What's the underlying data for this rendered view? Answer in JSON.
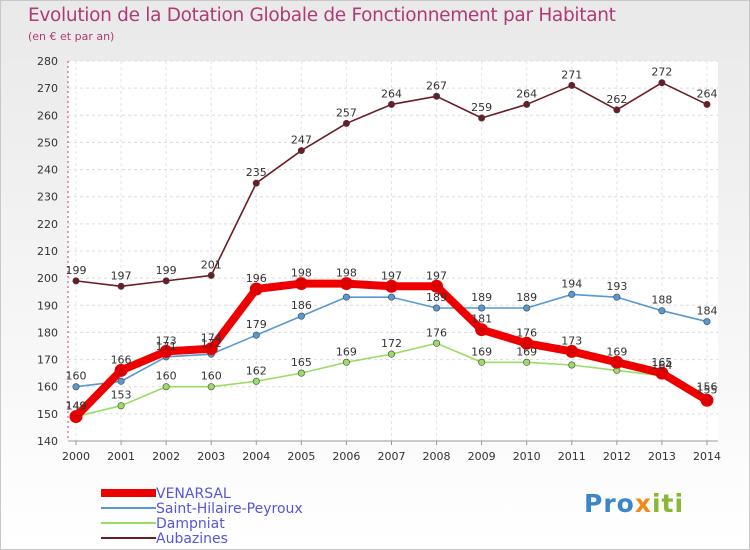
{
  "header": {
    "title": "Evolution de la Dotation Globale de Fonctionnement par Habitant",
    "subtitle": "(en € et par an)"
  },
  "logo": {
    "part1": "Pro",
    "part2": "x",
    "part3": "iti"
  },
  "chart_data": {
    "type": "line",
    "title": "Evolution de la Dotation Globale de Fonctionnement par Habitant",
    "subtitle": "(en € et par an)",
    "xlabel": "",
    "ylabel": "",
    "ylim": [
      140,
      280
    ],
    "yticks": [
      140,
      150,
      160,
      170,
      180,
      190,
      200,
      210,
      220,
      230,
      240,
      250,
      260,
      270,
      280
    ],
    "grid": true,
    "legend_position": "bottom-left",
    "x": [
      "2000",
      "2001",
      "2002",
      "2003",
      "2004",
      "2005",
      "2006",
      "2007",
      "2008",
      "2009",
      "2010",
      "2011",
      "2012",
      "2013",
      "2014"
    ],
    "series": [
      {
        "name": "Aubazines",
        "color": "#6b1c24",
        "values": [
          199,
          197,
          199,
          201,
          235,
          247,
          257,
          264,
          267,
          259,
          264,
          271,
          262,
          272,
          264
        ],
        "labels": [
          "199",
          "197",
          "199",
          "201",
          "235",
          "247",
          "257",
          "264",
          "267",
          "259",
          "264",
          "271",
          "262",
          "272",
          "264"
        ]
      },
      {
        "name": "Dampniat",
        "color": "#99dd66",
        "values": [
          149,
          153,
          160,
          160,
          162,
          165,
          169,
          172,
          176,
          169,
          169,
          168,
          166,
          164,
          156
        ],
        "labels": [
          "149",
          "153",
          "160",
          "160",
          "162",
          "165",
          "169",
          "172",
          "176",
          "169",
          "169",
          "",
          "",
          "164",
          "156"
        ]
      },
      {
        "name": "Saint-Hilaire-Peyroux",
        "color": "#5599d5",
        "values": [
          160,
          162,
          171,
          172,
          179,
          186,
          193,
          193,
          189,
          189,
          189,
          194,
          193,
          188,
          184
        ],
        "labels": [
          "160",
          "",
          "171",
          "172",
          "179",
          "186",
          "",
          "",
          "189",
          "189",
          "189",
          "194",
          "193",
          "188",
          "184"
        ]
      },
      {
        "name": "VENARSAL",
        "color": "#ee0000",
        "values": [
          149,
          166,
          173,
          174,
          196,
          198,
          198,
          197,
          197,
          181,
          176,
          173,
          169,
          165,
          155
        ],
        "labels": [
          "149",
          "166",
          "173",
          "174",
          "196",
          "198",
          "198",
          "197",
          "197",
          "181",
          "176",
          "173",
          "169",
          "165",
          "155"
        ]
      }
    ],
    "legend": [
      "VENARSAL",
      "Saint-Hilaire-Peyroux",
      "Dampniat",
      "Aubazines"
    ]
  }
}
